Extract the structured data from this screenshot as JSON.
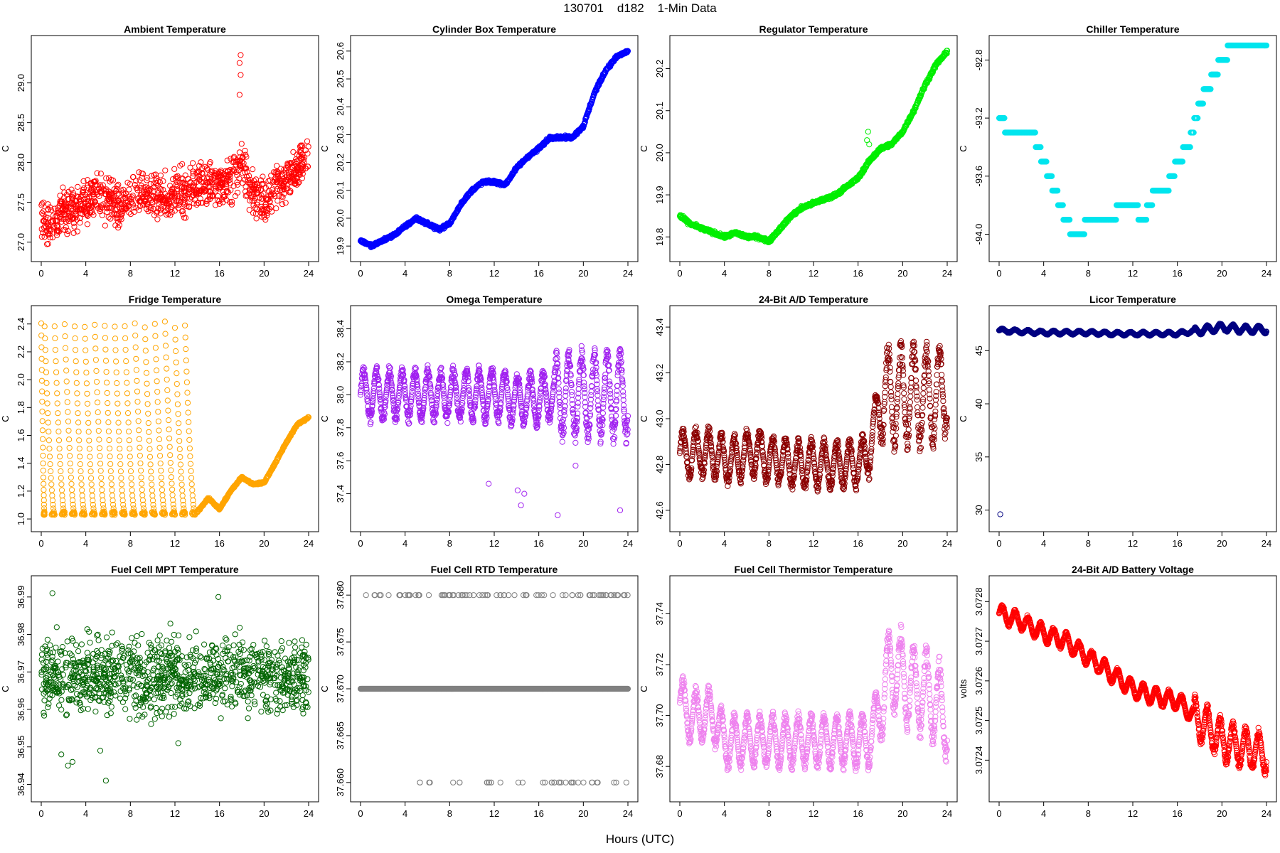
{
  "figure": {
    "title": "130701    d182    1-Min Data",
    "xlabel": "Hours (UTC)"
  },
  "chart_data": [
    {
      "type": "scatter",
      "title": "Ambient Temperature",
      "ylabel": "C",
      "color": "#ff0000",
      "xlim": [
        0,
        24
      ],
      "ylim": [
        26.88,
        29.47
      ],
      "xticks": [
        0,
        4,
        8,
        12,
        16,
        20,
        24
      ],
      "xticklabels": [
        "0",
        "4",
        "8",
        "12",
        "16",
        "20",
        "24"
      ],
      "yticks": [
        27.0,
        27.5,
        28.0,
        28.5,
        29.0
      ],
      "yticklabels": [
        "27.0",
        "27.5",
        "28.0",
        "28.5",
        "29.0"
      ],
      "x": [
        0,
        1,
        2,
        3,
        4,
        5,
        6,
        7,
        8,
        9,
        10,
        11,
        12,
        13,
        14,
        15,
        16,
        17,
        18,
        19,
        20,
        21,
        22,
        23,
        24
      ],
      "y": [
        27.3,
        27.2,
        27.4,
        27.4,
        27.5,
        27.6,
        27.5,
        27.45,
        27.55,
        27.6,
        27.6,
        27.55,
        27.6,
        27.65,
        27.7,
        27.7,
        27.75,
        27.75,
        28.0,
        27.6,
        27.5,
        27.7,
        27.8,
        27.9,
        28.1
      ],
      "spread": 0.25,
      "samples": 1100,
      "pattern": "noise",
      "outliers": [
        [
          17.9,
          29.35
        ],
        [
          17.8,
          29.25
        ],
        [
          17.9,
          29.1
        ],
        [
          17.8,
          28.85
        ]
      ]
    },
    {
      "type": "scatter",
      "title": "Cylinder Box Temperature",
      "ylabel": "C",
      "color": "#0000ff",
      "xlim": [
        0,
        24
      ],
      "ylim": [
        19.88,
        20.62
      ],
      "xticks": [
        0,
        4,
        8,
        12,
        16,
        20,
        24
      ],
      "xticklabels": [
        "0",
        "4",
        "8",
        "12",
        "16",
        "20",
        "24"
      ],
      "yticks": [
        19.9,
        20.0,
        20.1,
        20.2,
        20.3,
        20.4,
        20.5,
        20.6
      ],
      "yticklabels": [
        "19.9",
        "20.0",
        "20.1",
        "20.2",
        "20.3",
        "20.4",
        "20.5",
        "20.6"
      ],
      "x": [
        0,
        1,
        2,
        3,
        4,
        5,
        6,
        7,
        8,
        9,
        10,
        11,
        12,
        13,
        14,
        15,
        16,
        17,
        18,
        19,
        20,
        21,
        22,
        23,
        24
      ],
      "y": [
        19.92,
        19.9,
        19.92,
        19.94,
        19.97,
        20.0,
        19.98,
        19.96,
        19.98,
        20.05,
        20.1,
        20.13,
        20.13,
        20.12,
        20.18,
        20.22,
        20.25,
        20.29,
        20.29,
        20.29,
        20.33,
        20.45,
        20.53,
        20.58,
        20.6
      ],
      "spread": 0.008,
      "samples": 1000,
      "pattern": "line"
    },
    {
      "type": "scatter",
      "title": "Regulator Temperature",
      "ylabel": "C",
      "color": "#00ee00",
      "xlim": [
        0,
        24
      ],
      "ylim": [
        19.765,
        20.255
      ],
      "xticks": [
        0,
        4,
        8,
        12,
        16,
        20,
        24
      ],
      "xticklabels": [
        "0",
        "4",
        "8",
        "12",
        "16",
        "20",
        "24"
      ],
      "yticks": [
        19.8,
        19.9,
        20.0,
        20.1,
        20.2
      ],
      "yticklabels": [
        "19.8",
        "19.9",
        "20.0",
        "20.1",
        "20.2"
      ],
      "x": [
        0,
        1,
        2,
        3,
        4,
        5,
        6,
        7,
        8,
        9,
        10,
        11,
        12,
        13,
        14,
        15,
        16,
        17,
        18,
        19,
        20,
        21,
        22,
        23,
        24
      ],
      "y": [
        19.85,
        19.83,
        19.82,
        19.81,
        19.8,
        19.81,
        19.8,
        19.8,
        19.79,
        19.82,
        19.85,
        19.87,
        19.88,
        19.89,
        19.9,
        19.92,
        19.94,
        19.98,
        20.01,
        20.02,
        20.05,
        20.1,
        20.16,
        20.21,
        20.24
      ],
      "spread": 0.006,
      "samples": 1000,
      "pattern": "line",
      "outliers": [
        [
          16.9,
          20.05
        ],
        [
          16.8,
          20.03
        ],
        [
          17.0,
          20.02
        ]
      ]
    },
    {
      "type": "scatter",
      "title": "Chiller Temperature",
      "ylabel": "C",
      "color": "#00e5ee",
      "xlim": [
        0,
        24
      ],
      "ylim": [
        -94.12,
        -92.7
      ],
      "xticks": [
        0,
        4,
        8,
        12,
        16,
        20,
        24
      ],
      "xticklabels": [
        "0",
        "4",
        "8",
        "12",
        "16",
        "20",
        "24"
      ],
      "yticks": [
        -94.0,
        -93.6,
        -93.2,
        -92.8
      ],
      "yticklabels": [
        "-94.0",
        "-93.6",
        "-93.2",
        "-92.8"
      ],
      "x": [
        0,
        1,
        2,
        3,
        4,
        5,
        6,
        7,
        8,
        9,
        10,
        11,
        12,
        13,
        14,
        15,
        16,
        17,
        18,
        19,
        20,
        21,
        22,
        23,
        24
      ],
      "y": [
        -93.2,
        -93.3,
        -93.3,
        -93.3,
        -93.5,
        -93.7,
        -93.9,
        -94.05,
        -93.9,
        -93.9,
        -93.9,
        -93.8,
        -93.8,
        -93.9,
        -93.7,
        -93.7,
        -93.5,
        -93.4,
        -93.1,
        -92.95,
        -92.8,
        -92.7,
        -92.7,
        -92.7,
        -92.7
      ],
      "spread": 0,
      "samples": 600,
      "pattern": "step",
      "step": 0.1
    },
    {
      "type": "scatter",
      "title": "Fridge Temperature",
      "ylabel": "C",
      "color": "#ffa500",
      "xlim": [
        0,
        24
      ],
      "ylim": [
        0.98,
        2.46
      ],
      "xticks": [
        0,
        4,
        8,
        12,
        16,
        20,
        24
      ],
      "xticklabels": [
        "0",
        "4",
        "8",
        "12",
        "16",
        "20",
        "24"
      ],
      "yticks": [
        1.0,
        1.2,
        1.4,
        1.6,
        1.8,
        2.0,
        2.2,
        2.4
      ],
      "yticklabels": [
        "1.0",
        "1.2",
        "1.4",
        "1.6",
        "1.8",
        "2.0",
        "2.2",
        "2.4"
      ],
      "x": [
        14,
        15,
        16,
        17,
        18,
        19,
        20,
        21,
        22,
        23,
        24
      ],
      "y": [
        1.05,
        1.15,
        1.07,
        1.2,
        1.3,
        1.25,
        1.26,
        1.4,
        1.55,
        1.68,
        1.73
      ],
      "spread": 0.01,
      "samples": 400,
      "pattern": "sawtooth",
      "cycle_ends": [
        0.3,
        1.2,
        2.1,
        3.0,
        3.9,
        4.8,
        5.7,
        6.6,
        7.5,
        8.4,
        9.3,
        10.2,
        11.1,
        12.0,
        12.9,
        13.8
      ],
      "cycle_min": 1.03,
      "cycle_max": 2.42
    },
    {
      "type": "scatter",
      "title": "Omega Temperature",
      "ylabel": "C",
      "color": "#a020f0",
      "xlim": [
        0,
        24
      ],
      "ylim": [
        37.23,
        38.48
      ],
      "xticks": [
        0,
        4,
        8,
        12,
        16,
        20,
        24
      ],
      "xticklabels": [
        "0",
        "4",
        "8",
        "12",
        "16",
        "20",
        "24"
      ],
      "yticks": [
        37.4,
        37.6,
        37.8,
        38.0,
        38.2,
        38.4
      ],
      "yticklabels": [
        "37.4",
        "37.6",
        "37.8",
        "38.0",
        "38.2",
        "38.4"
      ],
      "x": [
        0,
        1,
        2,
        3,
        4,
        5,
        6,
        7,
        8,
        9,
        10,
        11,
        12,
        13,
        14,
        15,
        16,
        17,
        18,
        19,
        20,
        21,
        22,
        23,
        24
      ],
      "y": [
        38.0,
        38.0,
        38.0,
        38.0,
        38.0,
        38.0,
        38.0,
        38.0,
        38.0,
        38.0,
        38.0,
        38.0,
        38.0,
        38.0,
        37.97,
        37.97,
        37.97,
        38.0,
        38.0,
        38.0,
        38.0,
        38.0,
        38.0,
        38.0,
        38.0
      ],
      "spread": 0.0,
      "samples": 1200,
      "pattern": "oscillate",
      "amp": 0.18,
      "amp_late": 0.3,
      "late_start": 17.5,
      "outliers": [
        [
          11.5,
          37.46
        ],
        [
          14.1,
          37.42
        ],
        [
          14.4,
          37.33
        ],
        [
          14.7,
          37.4
        ],
        [
          17.7,
          37.27
        ],
        [
          23.3,
          37.3
        ],
        [
          19.3,
          37.57
        ]
      ]
    },
    {
      "type": "scatter",
      "title": "24-Bit A/D Temperature",
      "ylabel": "C",
      "color": "#8b0000",
      "xlim": [
        0,
        24
      ],
      "ylim": [
        42.55,
        43.45
      ],
      "xticks": [
        0,
        4,
        8,
        12,
        16,
        20,
        24
      ],
      "xticklabels": [
        "0",
        "4",
        "8",
        "12",
        "16",
        "20",
        "24"
      ],
      "yticks": [
        42.6,
        42.8,
        43.0,
        43.2,
        43.4
      ],
      "yticklabels": [
        "42.6",
        "42.8",
        "43.0",
        "43.2",
        "43.4"
      ],
      "x": [
        0,
        1,
        2,
        3,
        4,
        5,
        6,
        7,
        8,
        9,
        10,
        11,
        12,
        13,
        14,
        15,
        16,
        17,
        18,
        19,
        20,
        21,
        22,
        23,
        24
      ],
      "y": [
        42.85,
        42.85,
        42.85,
        42.85,
        42.82,
        42.82,
        42.85,
        42.85,
        42.82,
        42.82,
        42.8,
        42.8,
        42.8,
        42.8,
        42.8,
        42.8,
        42.8,
        42.85,
        43.1,
        43.1,
        43.1,
        43.1,
        43.1,
        43.1,
        43.15
      ],
      "spread": 0.0,
      "samples": 1200,
      "pattern": "oscillate",
      "amp": 0.12,
      "amp_late": 0.25,
      "late_start": 17.8
    },
    {
      "type": "scatter",
      "title": "Licor Temperature",
      "ylabel": "C",
      "color": "#000080",
      "xlim": [
        0,
        24
      ],
      "ylim": [
        28.9,
        48.3
      ],
      "xticks": [
        0,
        4,
        8,
        12,
        16,
        20,
        24
      ],
      "xticklabels": [
        "0",
        "4",
        "8",
        "12",
        "16",
        "20",
        "24"
      ],
      "yticks": [
        30,
        35,
        40,
        45
      ],
      "yticklabels": [
        "30",
        "35",
        "40",
        "45"
      ],
      "x": [
        0,
        2,
        4,
        6,
        8,
        10,
        12,
        14,
        16,
        18,
        20,
        22,
        24
      ],
      "y": [
        46.9,
        46.8,
        46.7,
        46.7,
        46.7,
        46.6,
        46.6,
        46.6,
        46.6,
        46.9,
        47.2,
        47.0,
        47.0
      ],
      "spread": 0.0,
      "samples": 1200,
      "pattern": "oscillate",
      "amp": 0.2,
      "amp_late": 0.4,
      "late_start": 17.5,
      "outliers": [
        [
          0.1,
          29.6
        ]
      ]
    },
    {
      "type": "scatter",
      "title": "Fuel Cell MPT Temperature",
      "ylabel": "C",
      "color": "#006400",
      "xlim": [
        0,
        24
      ],
      "ylim": [
        36.938,
        36.993
      ],
      "xticks": [
        0,
        4,
        8,
        12,
        16,
        20,
        24
      ],
      "xticklabels": [
        "0",
        "4",
        "8",
        "12",
        "16",
        "20",
        "24"
      ],
      "yticks": [
        36.94,
        36.95,
        36.96,
        36.97,
        36.98,
        36.99
      ],
      "yticklabels": [
        "36.94",
        "36.95",
        "36.96",
        "36.97",
        "36.98",
        "36.99"
      ],
      "x": [
        0,
        24
      ],
      "y": [
        36.969,
        36.969
      ],
      "spread": 0.009,
      "samples": 1100,
      "pattern": "noise",
      "outliers": [
        [
          1.0,
          36.991
        ],
        [
          15.9,
          36.99
        ],
        [
          1.8,
          36.948
        ],
        [
          2.8,
          36.946
        ],
        [
          2.4,
          36.945
        ],
        [
          5.8,
          36.941
        ],
        [
          5.3,
          36.949
        ],
        [
          12.3,
          36.951
        ]
      ]
    },
    {
      "type": "scatter",
      "title": "Fuel Cell RTD Temperature",
      "ylabel": "C",
      "color": "#808080",
      "xlim": [
        0,
        24
      ],
      "ylim": [
        37.659,
        37.681
      ],
      "xticks": [
        0,
        4,
        8,
        12,
        16,
        20,
        24
      ],
      "xticklabels": [
        "0",
        "4",
        "8",
        "12",
        "16",
        "20",
        "24"
      ],
      "yticks": [
        37.66,
        37.665,
        37.67,
        37.675,
        37.68
      ],
      "yticklabels": [
        "37.660",
        "37.665",
        "37.670",
        "37.675",
        "37.680"
      ],
      "x": [
        0,
        24
      ],
      "y": [
        37.67,
        37.67
      ],
      "spread": 0,
      "samples": 700,
      "pattern": "levels",
      "levels": [
        37.66,
        37.67,
        37.68
      ]
    },
    {
      "type": "scatter",
      "title": "Fuel Cell Thermistor Temperature",
      "ylabel": "C",
      "color": "#ee82ee",
      "xlim": [
        0,
        24
      ],
      "ylim": [
        37.67,
        37.751
      ],
      "xticks": [
        0,
        4,
        8,
        12,
        16,
        20,
        24
      ],
      "xticklabels": [
        "0",
        "4",
        "8",
        "12",
        "16",
        "20",
        "24"
      ],
      "yticks": [
        37.68,
        37.7,
        37.72,
        37.74
      ],
      "yticklabels": [
        "37.68",
        "37.70",
        "37.72",
        "37.74"
      ],
      "x": [
        0,
        1,
        2,
        3,
        4,
        5,
        6,
        7,
        8,
        9,
        10,
        11,
        12,
        13,
        14,
        15,
        16,
        17,
        18,
        19,
        20,
        21,
        22,
        23,
        24
      ],
      "y": [
        37.705,
        37.7,
        37.7,
        37.7,
        37.69,
        37.69,
        37.69,
        37.69,
        37.69,
        37.69,
        37.69,
        37.69,
        37.69,
        37.69,
        37.69,
        37.69,
        37.69,
        37.69,
        37.705,
        37.72,
        37.715,
        37.71,
        37.71,
        37.705,
        37.7
      ],
      "spread": 0.0,
      "samples": 1200,
      "pattern": "oscillate",
      "amp": 0.012,
      "amp_late": 0.02,
      "late_start": 17.8
    },
    {
      "type": "scatter",
      "title": "24-Bit A/D Battery Voltage",
      "ylabel": "volts",
      "color": "#ff0000",
      "xlim": [
        0,
        24
      ],
      "ylim": [
        3.07232,
        3.07284
      ],
      "xticks": [
        0,
        4,
        8,
        12,
        16,
        20,
        24
      ],
      "xticklabels": [
        "0",
        "4",
        "8",
        "12",
        "16",
        "20",
        "24"
      ],
      "yticks": [
        3.0724,
        3.0725,
        3.0726,
        3.0727,
        3.0728
      ],
      "yticklabels": [
        "3.0724",
        "3.0725",
        "3.0726",
        "3.0727",
        "3.0728"
      ],
      "x": [
        0,
        2,
        4,
        6,
        8,
        10,
        12,
        14,
        16,
        18,
        20,
        22,
        24
      ],
      "y": [
        3.07277,
        3.07275,
        3.07272,
        3.0727,
        3.07266,
        3.07262,
        3.07258,
        3.07256,
        3.07255,
        3.0725,
        3.07245,
        3.07243,
        3.07242
      ],
      "spread": 0.0,
      "samples": 1300,
      "pattern": "oscillate",
      "amp": 2.5e-05,
      "amp_late": 6e-05,
      "late_start": 17.5
    }
  ]
}
